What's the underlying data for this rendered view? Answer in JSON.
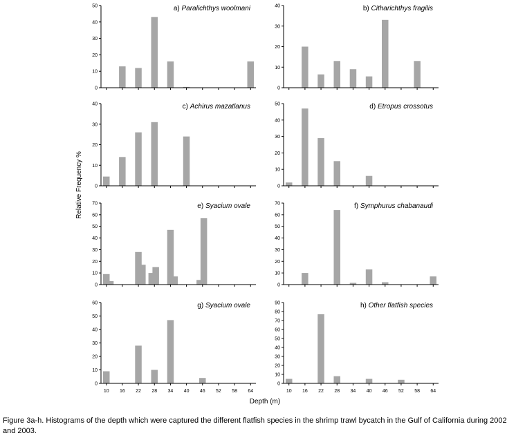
{
  "chart_data": {
    "type": "bar",
    "title": "Histograms of the depth which were captured the different flatfish species",
    "xlabel": "Depth (m)",
    "ylabel": "Relative Frequency %",
    "x_ticks": [
      10,
      16,
      22,
      28,
      34,
      40,
      46,
      52,
      58,
      64
    ],
    "panels": [
      {
        "id": "a",
        "letter": "a)",
        "species": "Paralichthys woolmani",
        "ylim": [
          0,
          50
        ],
        "yticks": [
          0,
          10,
          20,
          30,
          40,
          50
        ],
        "bars": [
          {
            "x": 16,
            "value": 13
          },
          {
            "x": 22,
            "value": 12
          },
          {
            "x": 28,
            "value": 43
          },
          {
            "x": 34,
            "value": 16
          },
          {
            "x": 40,
            "value": 0.5
          },
          {
            "x": 64,
            "value": 16
          }
        ]
      },
      {
        "id": "b",
        "letter": "b)",
        "species": "Citharichthys fragilis",
        "ylim": [
          0,
          40
        ],
        "yticks": [
          0,
          10,
          20,
          30,
          40
        ],
        "bars": [
          {
            "x": 16,
            "value": 20
          },
          {
            "x": 22,
            "value": 6.5
          },
          {
            "x": 28,
            "value": 13
          },
          {
            "x": 34,
            "value": 9
          },
          {
            "x": 40,
            "value": 5.5
          },
          {
            "x": 46,
            "value": 33
          },
          {
            "x": 58,
            "value": 13
          }
        ]
      },
      {
        "id": "c",
        "letter": "c)",
        "species": "Achirus mazatlanus",
        "ylim": [
          0,
          40
        ],
        "yticks": [
          0,
          10,
          20,
          30,
          40
        ],
        "bars": [
          {
            "x": 10,
            "value": 4.5
          },
          {
            "x": 16,
            "value": 14
          },
          {
            "x": 22,
            "value": 26
          },
          {
            "x": 28,
            "value": 31
          },
          {
            "x": 40,
            "value": 24
          }
        ]
      },
      {
        "id": "d",
        "letter": "d)",
        "species": "Etropus crossotus",
        "ylim": [
          0,
          50
        ],
        "yticks": [
          0,
          10,
          20,
          30,
          40,
          50
        ],
        "bars": [
          {
            "x": 10,
            "value": 2
          },
          {
            "x": 16,
            "value": 47
          },
          {
            "x": 22,
            "value": 29
          },
          {
            "x": 28,
            "value": 15
          },
          {
            "x": 40,
            "value": 6
          }
        ]
      },
      {
        "id": "e",
        "letter": "e)",
        "species": "Syacium ovale",
        "ylim": [
          0,
          70
        ],
        "yticks": [
          0,
          10,
          20,
          30,
          40,
          50,
          60,
          70
        ],
        "bars": [
          {
            "x": 10,
            "value": 9
          },
          {
            "x": 11.5,
            "value": 3
          },
          {
            "x": 22,
            "value": 28
          },
          {
            "x": 23.5,
            "value": 17
          },
          {
            "x": 27,
            "value": 10
          },
          {
            "x": 28.5,
            "value": 15
          },
          {
            "x": 34,
            "value": 47
          },
          {
            "x": 35.5,
            "value": 7
          },
          {
            "x": 45,
            "value": 4
          },
          {
            "x": 46.5,
            "value": 57
          }
        ]
      },
      {
        "id": "f",
        "letter": "f)",
        "species": "Symphurus chabanaudi",
        "ylim": [
          0,
          70
        ],
        "yticks": [
          0,
          10,
          20,
          30,
          40,
          50,
          60,
          70
        ],
        "bars": [
          {
            "x": 16,
            "value": 10
          },
          {
            "x": 28,
            "value": 64
          },
          {
            "x": 34,
            "value": 1.5
          },
          {
            "x": 40,
            "value": 13
          },
          {
            "x": 46,
            "value": 2
          },
          {
            "x": 64,
            "value": 7
          }
        ]
      },
      {
        "id": "g",
        "letter": "g)",
        "species": "Syacium ovale",
        "ylim": [
          0,
          60
        ],
        "yticks": [
          0,
          10,
          20,
          30,
          40,
          50,
          60
        ],
        "bars": [
          {
            "x": 10,
            "value": 9
          },
          {
            "x": 22,
            "value": 28
          },
          {
            "x": 28,
            "value": 10
          },
          {
            "x": 34,
            "value": 47
          },
          {
            "x": 46,
            "value": 4
          }
        ]
      },
      {
        "id": "h",
        "letter": "h)",
        "species": "Other flatfish species",
        "ylim": [
          0,
          90
        ],
        "yticks": [
          0,
          10,
          20,
          30,
          40,
          50,
          60,
          70,
          80,
          90
        ],
        "bars": [
          {
            "x": 10,
            "value": 5
          },
          {
            "x": 22,
            "value": 77
          },
          {
            "x": 28,
            "value": 8
          },
          {
            "x": 40,
            "value": 5
          },
          {
            "x": 52,
            "value": 4
          }
        ]
      }
    ]
  },
  "caption": "Figure 3a-h. Histograms of the depth which were captured the different flatfish species in the shrimp trawl bycatch in the Gulf of California during 2002 and 2003.",
  "colors": {
    "bar": "#a6a6a6",
    "axis": "#000000"
  }
}
